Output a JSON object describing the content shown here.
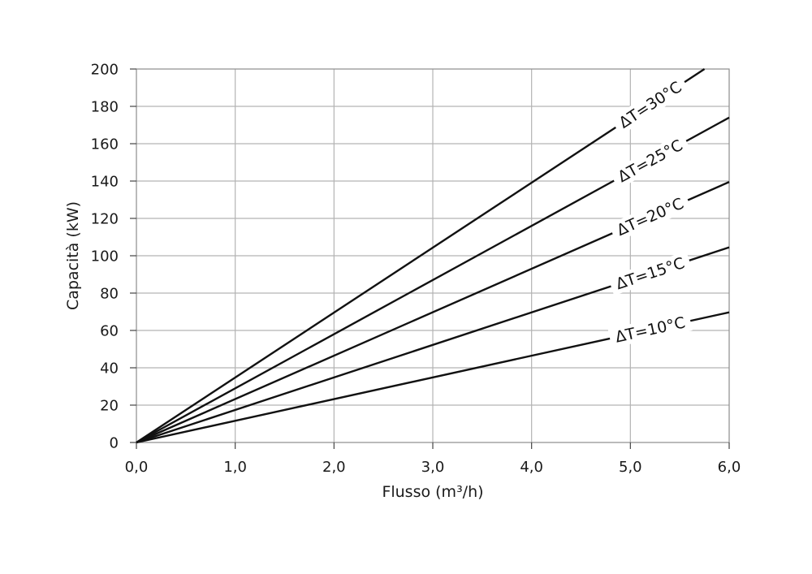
{
  "chart_data": {
    "type": "line",
    "xlabel": "Flusso (m³/h)",
    "ylabel": "Capacità (kW)",
    "xlim": [
      0,
      6
    ],
    "ylim": [
      0,
      200
    ],
    "x_ticks": [
      0,
      1,
      2,
      3,
      4,
      5,
      6
    ],
    "x_tick_labels": [
      "0,0",
      "1,0",
      "2,0",
      "3,0",
      "4,0",
      "5,0",
      "6,0"
    ],
    "y_ticks": [
      0,
      20,
      40,
      60,
      80,
      100,
      120,
      140,
      160,
      180,
      200
    ],
    "y_tick_labels": [
      "0",
      "20",
      "40",
      "60",
      "80",
      "100",
      "120",
      "140",
      "160",
      "180",
      "200"
    ],
    "grid": true,
    "series": [
      {
        "name": "ΔT=30°C",
        "x": [
          0,
          5.75
        ],
        "y": [
          0,
          200
        ]
      },
      {
        "name": "ΔT=25°C",
        "x": [
          0,
          6.0
        ],
        "y": [
          0,
          174
        ]
      },
      {
        "name": "ΔT=20°C",
        "x": [
          0,
          6.0
        ],
        "y": [
          0,
          139.5
        ]
      },
      {
        "name": "ΔT=15°C",
        "x": [
          0,
          6.0
        ],
        "y": [
          0,
          104.5
        ]
      },
      {
        "name": "ΔT=10°C",
        "x": [
          0,
          6.0
        ],
        "y": [
          0,
          69.7
        ]
      }
    ],
    "label_positions_x": [
      5.2,
      5.2,
      5.2,
      5.2,
      5.2
    ],
    "line_color": "#111111",
    "grid_color": "#b3b3b3"
  }
}
